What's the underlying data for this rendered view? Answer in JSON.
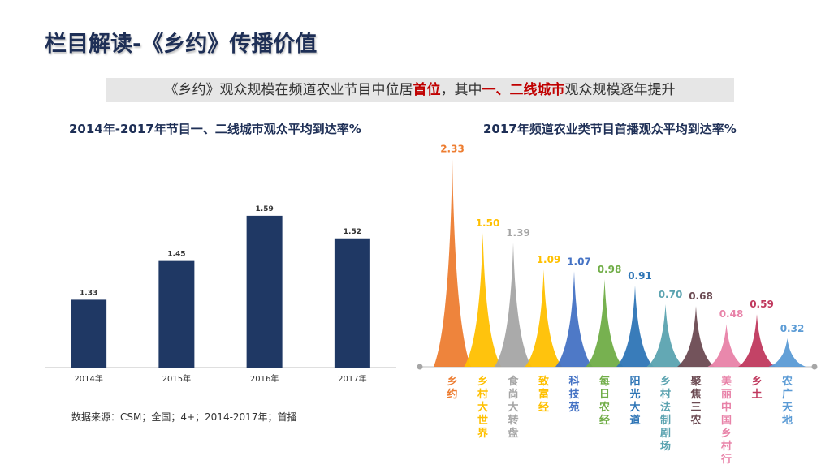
{
  "page": {
    "title": "栏目解读-《乡约》传播价值",
    "banner": {
      "part1": "《乡约》观众规模在频道农业节目中位居",
      "hl1": "首位",
      "part2": "，其中",
      "hl2": "一、二线城市",
      "part3": "观众规模逐年提升"
    },
    "source": "数据来源：CSM；全国；4+；2014-2017年；首播"
  },
  "chart_data": [
    {
      "type": "bar",
      "title": "2014年-2017年节目一、二线城市观众平均到达率%",
      "categories": [
        "2014年",
        "2015年",
        "2016年",
        "2017年"
      ],
      "values": [
        1.33,
        1.45,
        1.59,
        1.52
      ],
      "value_labels": [
        "1.33",
        "1.45",
        "1.59",
        "1.52"
      ],
      "ylim": [
        1.12,
        1.65
      ],
      "color": "#1f3864"
    },
    {
      "type": "area",
      "title": "2017年频道农业类节目首播观众平均到达率%",
      "categories": [
        "乡约",
        "乡村大世界",
        "食尚大转盘",
        "致富经",
        "科技苑",
        "每日农经",
        "阳光大道",
        "乡村法制剧场",
        "聚焦三农",
        "美丽中国乡村行",
        "乡土",
        "农广天地"
      ],
      "values": [
        2.33,
        1.5,
        1.39,
        1.09,
        1.07,
        0.98,
        0.91,
        0.7,
        0.68,
        0.48,
        0.59,
        0.32
      ],
      "value_labels": [
        "2.33",
        "1.50",
        "1.39",
        "1.09",
        "1.07",
        "0.98",
        "0.91",
        "0.70",
        "0.68",
        "0.48",
        "0.59",
        "0.32"
      ],
      "colors": [
        "#ed7d31",
        "#ffc000",
        "#a5a5a5",
        "#ffc000",
        "#4472c4",
        "#70ad47",
        "#2e75b6",
        "#5ba3b0",
        "#6b4a52",
        "#e882a8",
        "#c0395e",
        "#5b9bd5"
      ],
      "ylim": [
        0,
        2.4
      ]
    }
  ]
}
